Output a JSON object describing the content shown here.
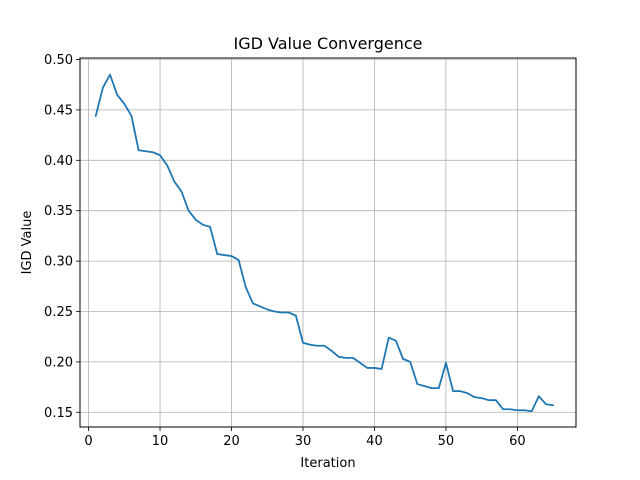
{
  "chart_data": {
    "type": "line",
    "title": "IGD Value Convergence",
    "xlabel": "Iteration",
    "ylabel": "IGD Value",
    "xlim": [
      -1.2,
      68.2
    ],
    "ylim": [
      0.1354,
      0.5015
    ],
    "xticks": [
      0,
      10,
      20,
      30,
      40,
      50,
      60
    ],
    "xtick_labels": [
      "0",
      "10",
      "20",
      "30",
      "40",
      "50",
      "60"
    ],
    "yticks": [
      0.15,
      0.2,
      0.25,
      0.3,
      0.35,
      0.4,
      0.45,
      0.5
    ],
    "ytick_labels": [
      "0.15",
      "0.20",
      "0.25",
      "0.30",
      "0.35",
      "0.40",
      "0.45",
      "0.50"
    ],
    "grid": true,
    "legend": "none",
    "series": [
      {
        "color": "#1f77b4",
        "x": [
          1,
          2,
          3,
          4,
          5,
          6,
          7,
          8,
          9,
          10,
          11,
          12,
          13,
          14,
          15,
          16,
          17,
          18,
          19,
          20,
          21,
          22,
          23,
          24,
          25,
          26,
          27,
          28,
          29,
          30,
          31,
          32,
          33,
          34,
          35,
          36,
          37,
          38,
          39,
          40,
          41,
          42,
          43,
          44,
          45,
          46,
          47,
          48,
          49,
          50,
          51,
          52,
          53,
          54,
          55,
          56,
          57,
          58,
          59,
          60,
          61,
          62,
          63,
          64,
          65
        ],
        "values": [
          0.444,
          0.472,
          0.485,
          0.465,
          0.456,
          0.444,
          0.41,
          0.409,
          0.408,
          0.405,
          0.395,
          0.379,
          0.369,
          0.35,
          0.341,
          0.336,
          0.334,
          0.307,
          0.306,
          0.305,
          0.301,
          0.274,
          0.258,
          0.255,
          0.252,
          0.25,
          0.249,
          0.249,
          0.246,
          0.219,
          0.217,
          0.216,
          0.216,
          0.211,
          0.205,
          0.204,
          0.204,
          0.199,
          0.194,
          0.194,
          0.193,
          0.224,
          0.221,
          0.203,
          0.2,
          0.178,
          0.176,
          0.174,
          0.174,
          0.199,
          0.171,
          0.171,
          0.169,
          0.165,
          0.164,
          0.162,
          0.162,
          0.153,
          0.153,
          0.152,
          0.152,
          0.151,
          0.166,
          0.158,
          0.157
        ]
      }
    ]
  }
}
